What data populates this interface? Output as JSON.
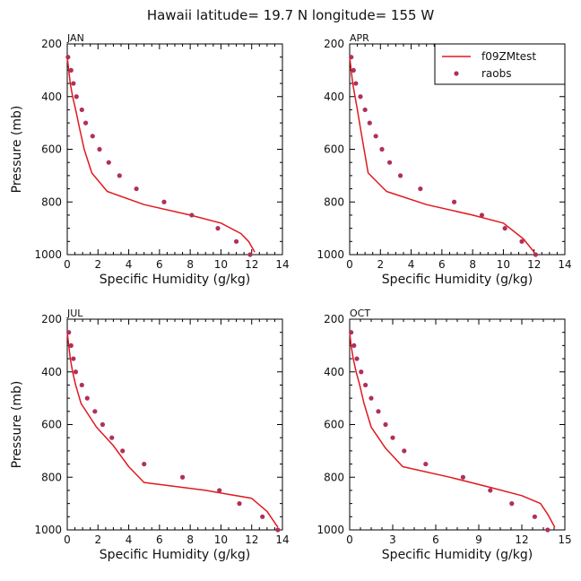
{
  "title": "Hawaii  latitude= 19.7 N longitude= 155 W",
  "colors": {
    "model": "#e0191e",
    "obs": "#b0305a",
    "axes": "#000000"
  },
  "legend": {
    "placement": "top-right (APR panel)",
    "model_label": "f09ZMtest",
    "obs_label": "raobs"
  },
  "chart_data": [
    {
      "type": "line",
      "panel": "JAN",
      "xlabel": "Specific Humidity (g/kg)",
      "ylabel": "Pressure (mb)",
      "xlim": [
        0,
        14
      ],
      "ylim": [
        1000,
        200
      ],
      "y_inverted": true,
      "xticks": [
        0,
        2,
        4,
        6,
        8,
        10,
        12,
        14
      ],
      "yticks": [
        200,
        400,
        600,
        800,
        1000
      ],
      "series": [
        {
          "name": "f09ZMtest",
          "style": "line",
          "x": [
            0.0,
            0.1,
            0.2,
            0.35,
            0.55,
            0.8,
            1.1,
            1.6,
            2.6,
            5.0,
            8.0,
            10.0,
            11.3,
            11.8,
            12.2
          ],
          "y": [
            250,
            300,
            350,
            400,
            450,
            520,
            600,
            690,
            760,
            810,
            850,
            880,
            920,
            950,
            990
          ]
        },
        {
          "name": "raobs",
          "style": "markers",
          "x": [
            0.05,
            0.25,
            0.4,
            0.6,
            0.95,
            1.2,
            1.65,
            2.1,
            2.7,
            3.4,
            4.5,
            6.3,
            8.1,
            9.8,
            11.0,
            11.9
          ],
          "y": [
            250,
            300,
            350,
            400,
            450,
            500,
            550,
            600,
            650,
            700,
            750,
            800,
            850,
            900,
            950,
            1000
          ]
        }
      ]
    },
    {
      "type": "line",
      "panel": "APR",
      "xlabel": "Specific Humidity (g/kg)",
      "ylabel": "",
      "xlim": [
        0,
        14
      ],
      "ylim": [
        1000,
        200
      ],
      "y_inverted": true,
      "xticks": [
        0,
        2,
        4,
        6,
        8,
        10,
        12,
        14
      ],
      "yticks": [
        200,
        400,
        600,
        800,
        1000
      ],
      "series": [
        {
          "name": "f09ZMtest",
          "style": "line",
          "x": [
            0.0,
            0.1,
            0.2,
            0.35,
            0.5,
            0.7,
            1.2,
            2.4,
            5.0,
            8.0,
            10.0,
            11.3,
            12.0
          ],
          "y": [
            250,
            300,
            350,
            400,
            450,
            520,
            690,
            760,
            810,
            850,
            880,
            940,
            990
          ]
        },
        {
          "name": "raobs",
          "style": "markers",
          "x": [
            0.1,
            0.25,
            0.4,
            0.7,
            1.0,
            1.3,
            1.7,
            2.1,
            2.6,
            3.3,
            4.6,
            6.8,
            8.6,
            10.1,
            11.2,
            12.1
          ],
          "y": [
            250,
            300,
            350,
            400,
            450,
            500,
            550,
            600,
            650,
            700,
            750,
            800,
            850,
            900,
            950,
            1000
          ]
        }
      ]
    },
    {
      "type": "line",
      "panel": "JUL",
      "xlabel": "Specific Humidity (g/kg)",
      "ylabel": "Pressure (mb)",
      "xlim": [
        0,
        14
      ],
      "ylim": [
        1000,
        200
      ],
      "y_inverted": true,
      "xticks": [
        0,
        2,
        4,
        6,
        8,
        10,
        12,
        14
      ],
      "yticks": [
        200,
        400,
        600,
        800,
        1000
      ],
      "series": [
        {
          "name": "f09ZMtest",
          "style": "line",
          "x": [
            0.0,
            0.1,
            0.2,
            0.35,
            0.55,
            0.9,
            1.9,
            3.0,
            4.0,
            5.0,
            9.0,
            12.0,
            13.0,
            13.7
          ],
          "y": [
            250,
            300,
            350,
            400,
            450,
            520,
            610,
            680,
            760,
            820,
            850,
            880,
            930,
            990
          ]
        },
        {
          "name": "raobs",
          "style": "markers",
          "x": [
            0.1,
            0.25,
            0.4,
            0.55,
            0.95,
            1.3,
            1.8,
            2.3,
            2.9,
            3.6,
            5.0,
            7.5,
            9.9,
            11.2,
            12.7,
            13.7
          ],
          "y": [
            250,
            300,
            350,
            400,
            450,
            500,
            550,
            600,
            650,
            700,
            750,
            800,
            850,
            900,
            950,
            1000
          ]
        }
      ]
    },
    {
      "type": "line",
      "panel": "OCT",
      "xlabel": "Specific Humidity (g/kg)",
      "ylabel": "",
      "xlim": [
        0,
        15
      ],
      "ylim": [
        1000,
        200
      ],
      "y_inverted": true,
      "xticks": [
        0,
        3,
        6,
        9,
        12,
        15
      ],
      "yticks": [
        200,
        400,
        600,
        800,
        1000
      ],
      "series": [
        {
          "name": "f09ZMtest",
          "style": "line",
          "x": [
            0.0,
            0.1,
            0.25,
            0.45,
            0.7,
            1.0,
            1.5,
            2.5,
            3.7,
            7.0,
            9.9,
            12.0,
            13.3,
            13.8,
            14.3
          ],
          "y": [
            250,
            300,
            350,
            400,
            450,
            520,
            610,
            690,
            760,
            800,
            840,
            870,
            900,
            940,
            990
          ]
        },
        {
          "name": "raobs",
          "style": "markers",
          "x": [
            0.1,
            0.3,
            0.5,
            0.8,
            1.1,
            1.5,
            2.0,
            2.5,
            3.0,
            3.8,
            5.3,
            7.9,
            9.8,
            11.3,
            12.9,
            13.8
          ],
          "y": [
            250,
            300,
            350,
            400,
            450,
            500,
            550,
            600,
            650,
            700,
            750,
            800,
            850,
            900,
            950,
            1000
          ]
        }
      ]
    }
  ]
}
